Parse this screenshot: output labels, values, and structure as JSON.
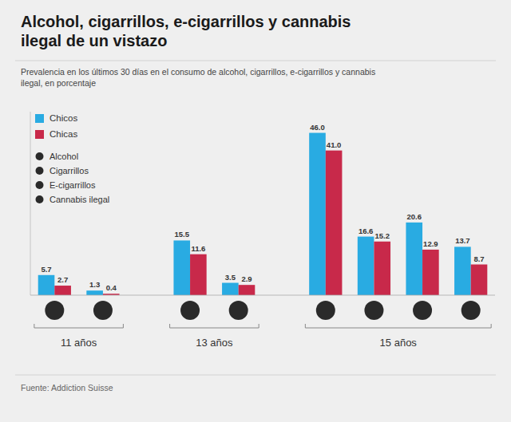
{
  "chart_data": {
    "type": "bar",
    "title": "Alcohol, cigarrillos, e-cigarrillos y cannabis\nilegal de un vistazo",
    "subtitle": "Prevalencia en los últimos 30 días en el consumo de alcohol, cigarrillos, e-cigarrillos y cannabis\nilegal, en porcentaje",
    "categories": [
      "11 años",
      "11 años",
      "13 años",
      "13 años",
      "15 años",
      "15 años",
      "15 años",
      "15 años"
    ],
    "series": [
      {
        "name": "Chicos",
        "color": "#29ABE2",
        "values": [
          5.7,
          1.3,
          15.5,
          3.5,
          46.0,
          16.6,
          20.6,
          13.7
        ],
        "value_labels": [
          "5.7",
          "1.3",
          "15.5",
          "3.5",
          "46.0",
          "16.6",
          "20.6",
          "13.7"
        ]
      },
      {
        "name": "Chicas",
        "color": "#C8294A",
        "values": [
          2.7,
          0.4,
          11.6,
          2.9,
          41.0,
          15.2,
          12.9,
          8.7
        ],
        "value_labels": [
          "2.7",
          "0.4",
          "11.6",
          "2.9",
          "41.0",
          "15.2",
          "12.9",
          "8.7"
        ]
      }
    ],
    "annotations": [
      "Alcohol",
      "Cigarrillos",
      "E-cigarrillos",
      "Cannabis ilegal"
    ],
    "source": "Fuente: Addiction Suisse",
    "ylim": [
      0,
      52
    ],
    "grid": false,
    "tick_labels": false,
    "data_labels": true,
    "legend": "upper left"
  }
}
